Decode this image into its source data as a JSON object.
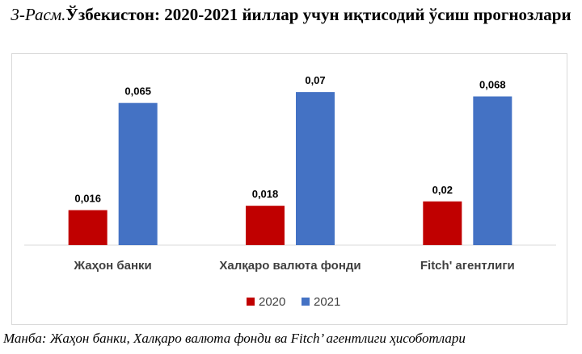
{
  "caption": {
    "prefix": "3-Расм.",
    "title": "Ўзбекистон: 2020-2021 йиллар учун иқтисодий ўсиш прогнозлари"
  },
  "source": "Манба: Жаҳон банки, Халқаро валюта фонди ва Fitch’ агентлиги ҳисоботлари",
  "chart_data": {
    "type": "bar",
    "categories": [
      "Жаҳон банки",
      "Халқаро валюта фонди",
      "Fitch' агентлиги"
    ],
    "series": [
      {
        "name": "2020",
        "values": [
          0.016,
          0.018,
          0.02
        ],
        "labels": [
          "0,016",
          "0,018",
          "0,02"
        ],
        "color": "#c00000"
      },
      {
        "name": "2021",
        "values": [
          0.065,
          0.07,
          0.068
        ],
        "labels": [
          "0,065",
          "0,07",
          "0,068"
        ],
        "color": "#4472c4"
      }
    ],
    "ylim": [
      0,
      0.08
    ],
    "grid": false,
    "legend": "bottom",
    "axis_color": "#d9d9d9"
  }
}
